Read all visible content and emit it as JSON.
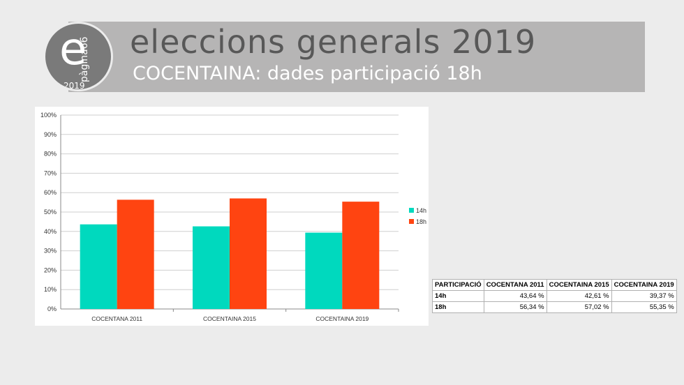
{
  "header": {
    "title": "eleccions generals 2019",
    "subtitle": "COCENTAINA: dades participació 18h",
    "logo": {
      "letter": "e",
      "word": "pàgina66",
      "year": "2019"
    },
    "bar_color": "#b6b5b5"
  },
  "chart_data": {
    "type": "bar",
    "categories": [
      "COCENTANA 2011",
      "COCENTAINA 2015",
      "COCENTAINA 2019"
    ],
    "series": [
      {
        "name": "14h",
        "values": [
          43.64,
          42.61,
          39.37
        ],
        "color": "#00d9be"
      },
      {
        "name": "18h",
        "values": [
          56.34,
          57.02,
          55.35
        ],
        "color": "#ff4411"
      }
    ],
    "y_ticks": [
      "0%",
      "10%",
      "20%",
      "30%",
      "40%",
      "50%",
      "60%",
      "70%",
      "80%",
      "90%",
      "100%"
    ],
    "ylim": [
      0,
      100
    ],
    "grid": true,
    "legend": "right"
  },
  "table": {
    "headers": [
      "PARTICIPACIÓ",
      "COCENTANA 2011",
      "COCENTAINA 2015",
      "COCENTAINA 2019"
    ],
    "rows": [
      {
        "label": "14h",
        "values": [
          "43,64 %",
          "42,61 %",
          "39,37 %"
        ]
      },
      {
        "label": "18h",
        "values": [
          "56,34 %",
          "57,02 %",
          "55,35 %"
        ]
      }
    ]
  }
}
